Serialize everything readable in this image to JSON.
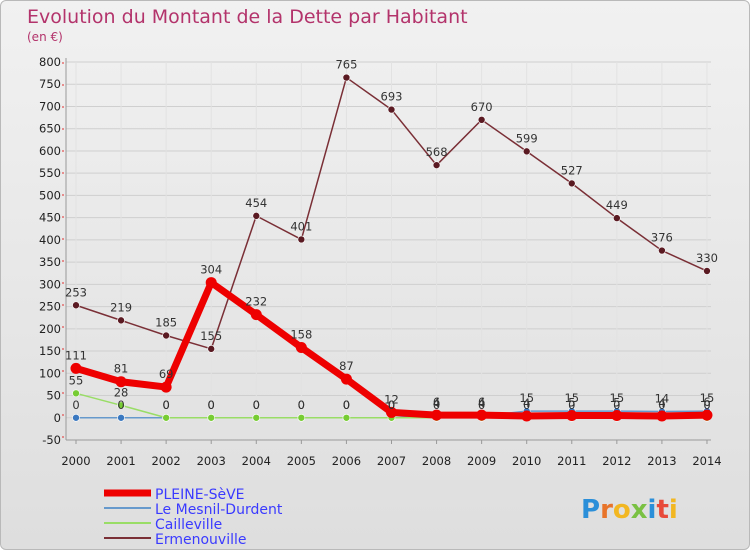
{
  "chart_data": {
    "type": "line",
    "title": "Evolution du Montant de la Dette par Habitant",
    "ylabel": "(en €)",
    "xlabel": "",
    "ylim": [
      -50,
      800
    ],
    "yticks": [
      800,
      750,
      700,
      650,
      600,
      550,
      500,
      450,
      400,
      350,
      300,
      250,
      200,
      150,
      100,
      50,
      0,
      -50
    ],
    "categories": [
      "2000",
      "2001",
      "2002",
      "2003",
      "2004",
      "2005",
      "2006",
      "2007",
      "2008",
      "2009",
      "2010",
      "2011",
      "2012",
      "2013",
      "2014"
    ],
    "legend_position": "bottom-left",
    "series": [
      {
        "name": "Ermenouville",
        "color": "#7a2f36",
        "marker_color": "#5a1a22",
        "values": [
          253,
          219,
          185,
          155,
          454,
          401,
          765,
          693,
          568,
          670,
          599,
          527,
          449,
          376,
          330
        ],
        "labels": [
          "253",
          "219",
          "185",
          "155",
          "454",
          "401",
          "765",
          "693",
          "568",
          "670",
          "599",
          "527",
          "449",
          "376",
          "330"
        ]
      },
      {
        "name": "Le Mesnil-Durdent",
        "color": "#6699cc",
        "marker_color": "#3a78c0",
        "values": [
          0,
          0,
          0,
          0,
          0,
          0,
          0,
          0,
          4,
          4,
          15,
          15,
          15,
          14,
          15
        ],
        "labels": [
          "0",
          "0",
          "0",
          "0",
          "0",
          "0",
          "0",
          "0",
          "4",
          "4",
          "15",
          "15",
          "15",
          "14",
          "15"
        ]
      },
      {
        "name": "Cailleville",
        "color": "#99dd66",
        "marker_color": "#77cc33",
        "values": [
          55,
          28,
          0,
          0,
          0,
          0,
          0,
          0,
          0,
          0,
          0,
          0,
          0,
          0,
          0
        ],
        "labels": [
          "55",
          "28",
          "0",
          "0",
          "0",
          "0",
          "0",
          "0",
          "0",
          "0",
          "0",
          "0",
          "0",
          "0",
          "0"
        ]
      },
      {
        "name": "PLEINE-SèVE",
        "color": "#ee0000",
        "marker_color": "#ee0000",
        "values": [
          111,
          81,
          69,
          304,
          232,
          158,
          87,
          12,
          6,
          6,
          4,
          5,
          5,
          4,
          6
        ],
        "labels": [
          "111",
          "81",
          "69",
          "304",
          "232",
          "158",
          "87",
          "12",
          "6",
          "6",
          "4",
          "5",
          "5",
          "4",
          "6"
        ]
      }
    ],
    "legend": [
      "PLEINE-SèVE",
      "Le Mesnil-Durdent",
      "Cailleville",
      "Ermenouville"
    ]
  },
  "branding": {
    "logo_text": "Proxiti"
  }
}
